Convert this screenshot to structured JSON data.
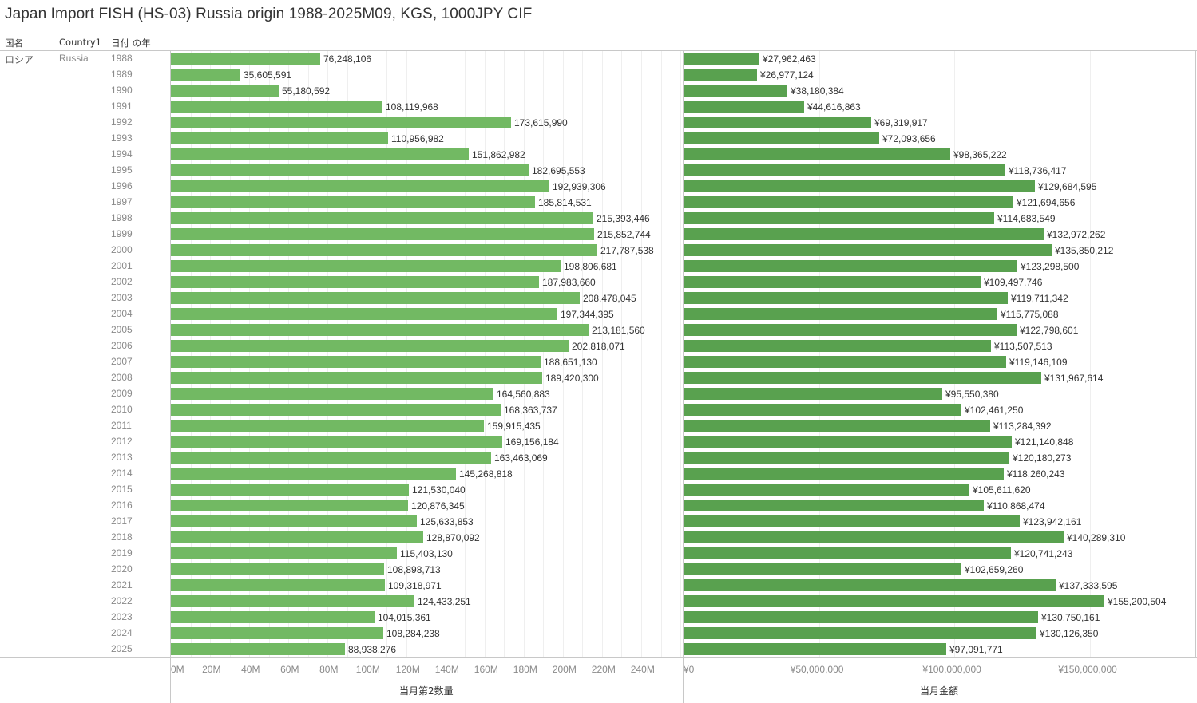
{
  "title": "Japan Import FISH (HS-03) Russia origin 1988-2025M09, KGS, 1000JPY CIF",
  "headers": {
    "country_jp": "国名",
    "country_en": "Country1",
    "year": "日付 の年"
  },
  "row_dims": {
    "country_jp": "ロシア",
    "country_en": "Russia"
  },
  "colors": {
    "quantity_bar": "#72b963",
    "amount_bar": "#59a14f"
  },
  "chart_data": [
    {
      "type": "bar",
      "orientation": "horizontal",
      "title": "",
      "xlabel": "当月第2数量",
      "ylabel": "日付 の年",
      "xlim": [
        0,
        260000000
      ],
      "x_ticks": [
        "0M",
        "20M",
        "40M",
        "60M",
        "80M",
        "100M",
        "120M",
        "140M",
        "160M",
        "180M",
        "200M",
        "220M",
        "240M"
      ],
      "x_tick_values": [
        0,
        20000000,
        40000000,
        60000000,
        80000000,
        100000000,
        120000000,
        140000000,
        160000000,
        180000000,
        200000000,
        220000000,
        240000000
      ],
      "grid": true,
      "categories": [
        "1988",
        "1989",
        "1990",
        "1991",
        "1992",
        "1993",
        "1994",
        "1995",
        "1996",
        "1997",
        "1998",
        "1999",
        "2000",
        "2001",
        "2002",
        "2003",
        "2004",
        "2005",
        "2006",
        "2007",
        "2008",
        "2009",
        "2010",
        "2011",
        "2012",
        "2013",
        "2014",
        "2015",
        "2016",
        "2017",
        "2018",
        "2019",
        "2020",
        "2021",
        "2022",
        "2023",
        "2024",
        "2025"
      ],
      "values": [
        76248106,
        35605591,
        55180592,
        108119968,
        173615990,
        110956982,
        151862982,
        182695553,
        192939306,
        185814531,
        215393446,
        215852744,
        217787538,
        198806681,
        187983660,
        208478045,
        197344395,
        213181560,
        202818071,
        188651130,
        189420300,
        164560883,
        168363737,
        159915435,
        169156184,
        163463069,
        145268818,
        121530040,
        120876345,
        125633853,
        128870092,
        115403130,
        108898713,
        109318971,
        124433251,
        104015361,
        108284238,
        88938276
      ],
      "labels": [
        "76,248,106",
        "35,605,591",
        "55,180,592",
        "108,119,968",
        "173,615,990",
        "110,956,982",
        "151,862,982",
        "182,695,553",
        "192,939,306",
        "185,814,531",
        "215,393,446",
        "215,852,744",
        "217,787,538",
        "198,806,681",
        "187,983,660",
        "208,478,045",
        "197,344,395",
        "213,181,560",
        "202,818,071",
        "188,651,130",
        "189,420,300",
        "164,560,883",
        "168,363,737",
        "159,915,435",
        "169,156,184",
        "163,463,069",
        "145,268,818",
        "121,530,040",
        "120,876,345",
        "125,633,853",
        "128,870,092",
        "115,403,130",
        "108,898,713",
        "109,318,971",
        "124,433,251",
        "104,015,361",
        "108,284,238",
        "88,938,276"
      ]
    },
    {
      "type": "bar",
      "orientation": "horizontal",
      "title": "",
      "xlabel": "当月金額",
      "ylabel": "日付 の年",
      "xlim": [
        0,
        188000000
      ],
      "x_ticks": [
        "¥0",
        "¥50,000,000",
        "¥100,000,000",
        "¥150,000,000"
      ],
      "x_tick_values": [
        0,
        50000000,
        100000000,
        150000000
      ],
      "grid": true,
      "categories": [
        "1988",
        "1989",
        "1990",
        "1991",
        "1992",
        "1993",
        "1994",
        "1995",
        "1996",
        "1997",
        "1998",
        "1999",
        "2000",
        "2001",
        "2002",
        "2003",
        "2004",
        "2005",
        "2006",
        "2007",
        "2008",
        "2009",
        "2010",
        "2011",
        "2012",
        "2013",
        "2014",
        "2015",
        "2016",
        "2017",
        "2018",
        "2019",
        "2020",
        "2021",
        "2022",
        "2023",
        "2024",
        "2025"
      ],
      "values": [
        27962463,
        26977124,
        38180384,
        44616863,
        69319917,
        72093656,
        98365222,
        118736417,
        129684595,
        121694656,
        114683549,
        132972262,
        135850212,
        123298500,
        109497746,
        119711342,
        115775088,
        122798601,
        113507513,
        119146109,
        131967614,
        95550380,
        102461250,
        113284392,
        121140848,
        120180273,
        118260243,
        105611620,
        110868474,
        123942161,
        140289310,
        120741243,
        102659260,
        137333595,
        155200504,
        130750161,
        130126350,
        97091771
      ],
      "labels": [
        "¥27,962,463",
        "¥26,977,124",
        "¥38,180,384",
        "¥44,616,863",
        "¥69,319,917",
        "¥72,093,656",
        "¥98,365,222",
        "¥118,736,417",
        "¥129,684,595",
        "¥121,694,656",
        "¥114,683,549",
        "¥132,972,262",
        "¥135,850,212",
        "¥123,298,500",
        "¥109,497,746",
        "¥119,711,342",
        "¥115,775,088",
        "¥122,798,601",
        "¥113,507,513",
        "¥119,146,109",
        "¥131,967,614",
        "¥95,550,380",
        "¥102,461,250",
        "¥113,284,392",
        "¥121,140,848",
        "¥120,180,273",
        "¥118,260,243",
        "¥105,611,620",
        "¥110,868,474",
        "¥123,942,161",
        "¥140,289,310",
        "¥120,741,243",
        "¥102,659,260",
        "¥137,333,595",
        "¥155,200,504",
        "¥130,750,161",
        "¥130,126,350",
        "¥97,091,771"
      ]
    }
  ]
}
